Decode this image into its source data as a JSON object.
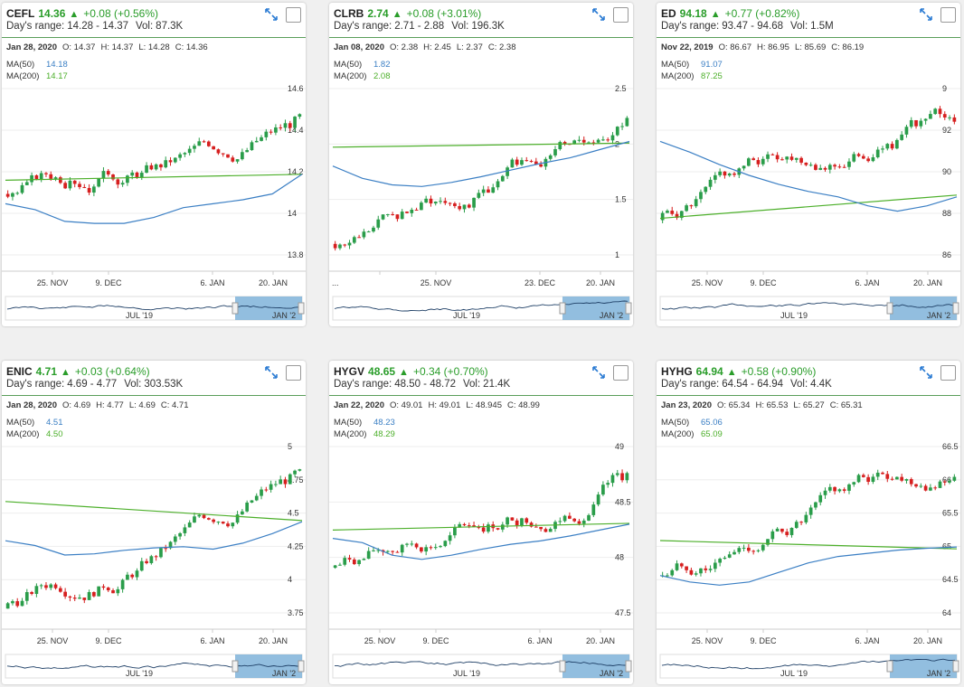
{
  "cards": [
    {
      "symbol": "CEFL",
      "price": "14.36",
      "change": "+0.08 (+0.56%)",
      "range_label": "Day's range:",
      "range": "14.28 - 14.37",
      "vol_label": "Vol:",
      "volume": "87.3K",
      "date": "Jan 28, 2020",
      "open": "O: 14.37",
      "high": "H: 14.37",
      "low": "L: 14.28",
      "close": "C: 14.36",
      "ma50_label": "MA(50)",
      "ma50": "14.18",
      "ma200_label": "MA(200)",
      "ma200": "14.17",
      "y_ticks": [
        "14.6",
        "14.4",
        "14.2",
        "14",
        "13.8"
      ],
      "x_ticks": [
        "25. NOV",
        "9. DEC",
        "6. JAN",
        "20. JAN"
      ],
      "nav_ticks": [
        "JUL '19",
        "JAN '2"
      ],
      "chart_data": {
        "type": "candlestick",
        "y_range": [
          13.72,
          14.66
        ],
        "start": 14.1,
        "ma200_start": 14.17,
        "ma200_end": 14.2,
        "ma50_path": [
          14.05,
          14.02,
          13.96,
          13.95,
          13.95,
          13.98,
          14.03,
          14.05,
          14.07,
          14.1,
          14.2
        ]
      }
    },
    {
      "symbol": "CLRB",
      "price": "2.74",
      "change": "+0.08 (+3.01%)",
      "range_label": "Day's range:",
      "range": "2.71 - 2.88",
      "vol_label": "Vol:",
      "volume": "196.3K",
      "date": "Jan 08, 2020",
      "open": "O: 2.38",
      "high": "H: 2.45",
      "low": "L: 2.37",
      "close": "C: 2.38",
      "ma50_label": "MA(50)",
      "ma50": "1.82",
      "ma200_label": "MA(200)",
      "ma200": "2.08",
      "y_ticks": [
        "2.5",
        "2",
        "1.5",
        "1"
      ],
      "x_ticks": [
        "...",
        "25. NOV",
        "23. DEC",
        "20. JAN"
      ],
      "nav_ticks": [
        "JUL '19",
        "JAN '2"
      ],
      "chart_data": {
        "type": "candlestick",
        "y_range": [
          0.6,
          2.85
        ],
        "start": 0.9,
        "ma200_start": 2.08,
        "ma200_end": 2.13,
        "ma50_path": [
          1.85,
          1.7,
          1.62,
          1.6,
          1.65,
          1.72,
          1.8,
          1.88,
          1.95,
          2.05,
          2.15
        ]
      }
    },
    {
      "symbol": "ED",
      "price": "94.18",
      "change": "+0.77 (+0.82%)",
      "range_label": "Day's range:",
      "range": "93.47 - 94.68",
      "vol_label": "Vol:",
      "volume": "1.5M",
      "date": "Nov 22, 2019",
      "open": "O: 86.67",
      "high": "H: 86.95",
      "low": "L: 85.69",
      "close": "C: 86.19",
      "ma50_label": "MA(50)",
      "ma50": "91.07",
      "ma200_label": "MA(200)",
      "ma200": "87.25",
      "y_ticks": [
        "9",
        "92",
        "90",
        "88",
        "86"
      ],
      "x_ticks": [
        "25. NOV",
        "9. DEC",
        "6. JAN",
        "20. JAN"
      ],
      "nav_ticks": [
        "JUL '19",
        "JAN '2"
      ],
      "chart_data": {
        "type": "candlestick",
        "y_range": [
          84.5,
          94.8
        ],
        "start": 87.2,
        "ma200_start": 87.3,
        "ma200_end": 88.6,
        "ma50_path": [
          91.6,
          91.0,
          90.3,
          89.7,
          89.2,
          88.8,
          88.5,
          88.0,
          87.7,
          88.0,
          88.5
        ]
      }
    },
    {
      "symbol": "ENIC",
      "price": "4.71",
      "change": "+0.03 (+0.64%)",
      "range_label": "Day's range:",
      "range": "4.69 - 4.77",
      "vol_label": "Vol:",
      "volume": "303.53K",
      "date": "Jan 28, 2020",
      "open": "O: 4.69",
      "high": "H: 4.77",
      "low": "L: 4.69",
      "close": "C: 4.71",
      "ma50_label": "MA(50)",
      "ma50": "4.51",
      "ma200_label": "MA(200)",
      "ma200": "4.50",
      "y_ticks": [
        "5",
        "4.75",
        "4.5",
        "4.25",
        "4",
        "3.75"
      ],
      "x_ticks": [
        "25. NOV",
        "9. DEC",
        "6. JAN",
        "20. JAN"
      ],
      "nav_ticks": [
        "JUL '19",
        "JAN '2"
      ],
      "chart_data": {
        "type": "candlestick",
        "y_range": [
          3.6,
          5.15
        ],
        "start": 3.75,
        "ma200_start": 4.65,
        "ma200_end": 4.49,
        "ma50_path": [
          4.32,
          4.28,
          4.2,
          4.21,
          4.24,
          4.26,
          4.27,
          4.25,
          4.3,
          4.38,
          4.48
        ]
      }
    },
    {
      "symbol": "HYGV",
      "price": "48.65",
      "change": "+0.34 (+0.70%)",
      "range_label": "Day's range:",
      "range": "48.50 - 48.72",
      "vol_label": "Vol:",
      "volume": "21.4K",
      "date": "Jan 22, 2020",
      "open": "O: 49.01",
      "high": "H: 49.01",
      "low": "L: 48.945",
      "close": "C: 48.99",
      "ma50_label": "MA(50)",
      "ma50": "48.23",
      "ma200_label": "MA(200)",
      "ma200": "48.29",
      "y_ticks": [
        "49",
        "48.5",
        "48",
        "47.5"
      ],
      "x_ticks": [
        "25. NOV",
        "9. DEC",
        "6. JAN",
        "20. JAN"
      ],
      "nav_ticks": [
        "JUL '19",
        "JAN '2"
      ],
      "chart_data": {
        "type": "candlestick",
        "y_range": [
          47.1,
          49.3
        ],
        "start": 47.8,
        "ma200_start": 48.25,
        "ma200_end": 48.33,
        "ma50_path": [
          48.15,
          48.1,
          47.95,
          47.9,
          47.95,
          48.02,
          48.08,
          48.12,
          48.18,
          48.25,
          48.32
        ]
      }
    },
    {
      "symbol": "HYHG",
      "price": "64.94",
      "change": "+0.58 (+0.90%)",
      "range_label": "Day's range:",
      "range": "64.54 - 64.94",
      "vol_label": "Vol:",
      "volume": "4.4K",
      "date": "Jan 23, 2020",
      "open": "O: 65.34",
      "high": "H: 65.53",
      "low": "L: 65.27",
      "close": "C: 65.31",
      "ma50_label": "MA(50)",
      "ma50": "65.06",
      "ma200_label": "MA(200)",
      "ma200": "65.09",
      "y_ticks": [
        "66.5",
        "66",
        "65.5",
        "65",
        "64.5",
        "64"
      ],
      "x_ticks": [
        "25. NOV",
        "9. DEC",
        "6. JAN",
        "20. JAN"
      ],
      "nav_ticks": [
        "JUL '19",
        "JAN '2"
      ],
      "chart_data": {
        "type": "candlestick",
        "y_range": [
          63.8,
          66.7
        ],
        "start": 64.6,
        "ma200_start": 65.15,
        "ma200_end": 65.02,
        "ma50_path": [
          64.6,
          64.5,
          64.45,
          64.5,
          64.65,
          64.8,
          64.9,
          64.95,
          65.0,
          65.03,
          65.05
        ]
      }
    }
  ]
}
